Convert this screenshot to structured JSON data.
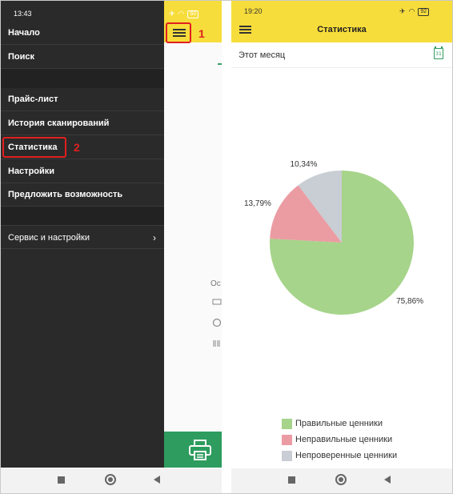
{
  "left_phone": {
    "status_time": "13:43",
    "battery": "60",
    "menu": {
      "items": [
        {
          "label": "Начало"
        },
        {
          "label": "Поиск"
        },
        {
          "label": "Прайс-лист"
        },
        {
          "label": "История сканирований"
        },
        {
          "label": "Статистика"
        },
        {
          "label": "Настройки"
        },
        {
          "label": "Предложить возможность"
        },
        {
          "label": "Сервис и настройки"
        }
      ]
    },
    "annotations": [
      "1",
      "2"
    ],
    "background_text": "Ос"
  },
  "right_phone": {
    "status_time": "19:20",
    "battery": "92",
    "title": "Статистика",
    "period": "Этот месяц",
    "calendar_day": "31",
    "chart_data": {
      "type": "pie",
      "labels": [
        "Правильные ценники",
        "Неправильные ценники",
        "Непроверенные ценники"
      ],
      "values": [
        75.86,
        13.79,
        10.34
      ],
      "value_labels": [
        "75,86%",
        "13,79%",
        "10,34%"
      ],
      "colors": [
        "#a6d48a",
        "#eb9ca3",
        "#c8ced3"
      ],
      "legend_position": "bottom"
    }
  },
  "colors": {
    "accent_yellow": "#f7dd3b",
    "accent_green": "#2e9c5e",
    "drawer_bg": "#2a2a2a",
    "annotation_red": "#e02020"
  }
}
